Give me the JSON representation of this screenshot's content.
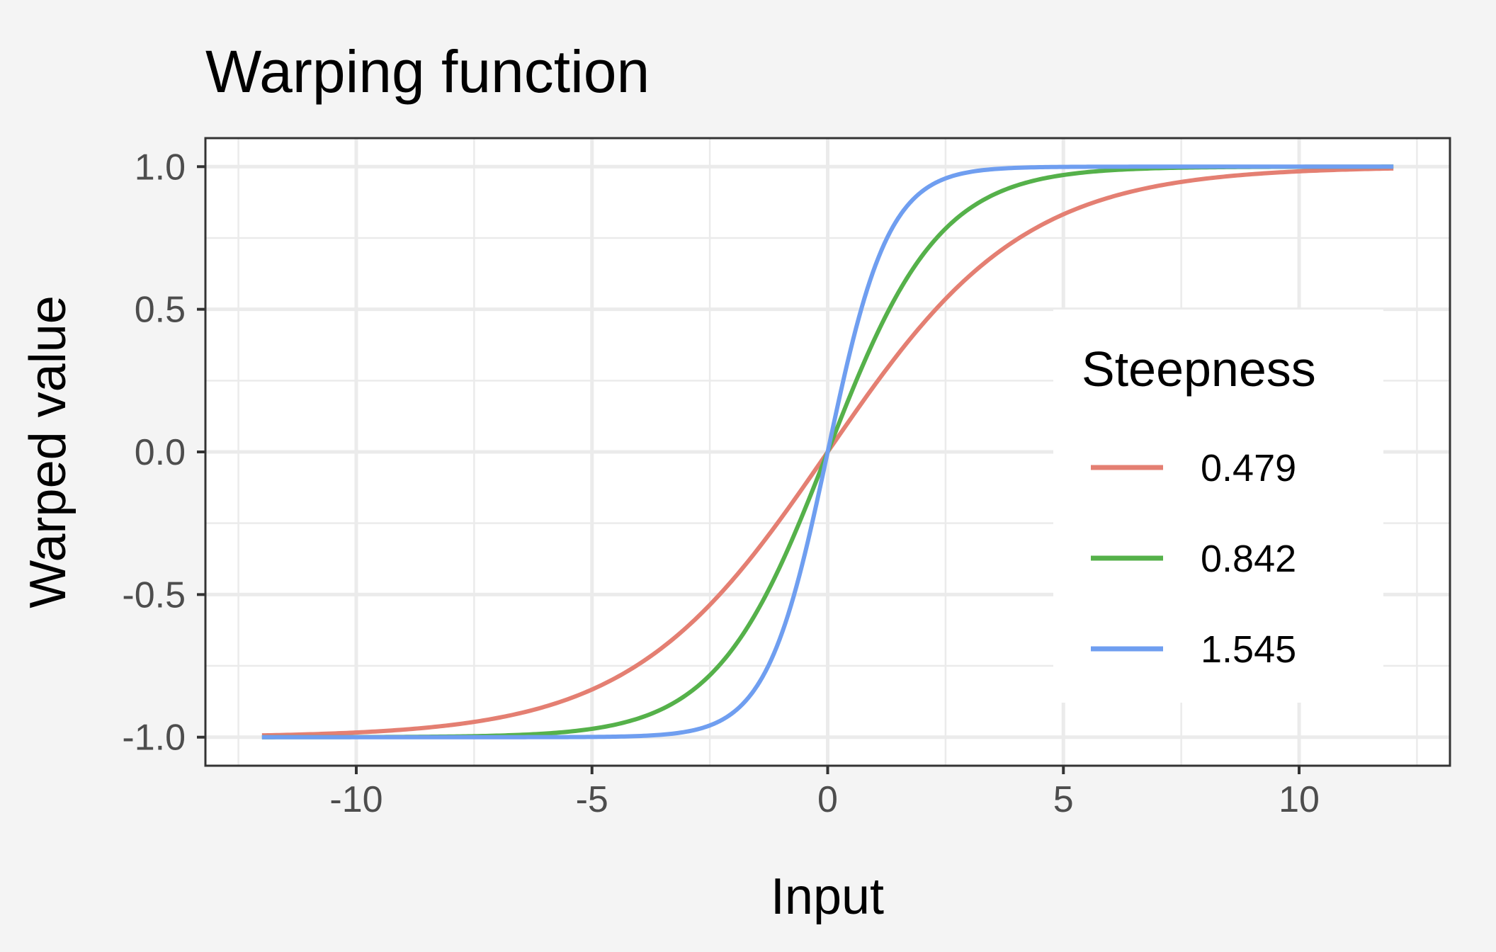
{
  "chart_data": {
    "type": "line",
    "title": "Warping function",
    "xlabel": "Input",
    "ylabel": "Warped value",
    "xlim": [
      -13.2,
      13.2
    ],
    "ylim": [
      -1.1,
      1.1
    ],
    "x_ticks": [
      -10,
      -5,
      0,
      5,
      10
    ],
    "x_tick_labels": [
      "-10",
      "-5",
      "0",
      "5",
      "10"
    ],
    "y_ticks": [
      -1.0,
      -0.5,
      0.0,
      0.5,
      1.0
    ],
    "y_tick_labels": [
      "-1.0",
      "-0.5",
      "0.0",
      "0.5",
      "1.0"
    ],
    "x_range": [
      -12,
      12
    ],
    "function": "tanh(steepness * x / 2)",
    "grid": true,
    "legend": {
      "title": "Steepness",
      "position": "right"
    },
    "series": [
      {
        "name": "0.479",
        "steepness": 0.479,
        "color": "#e47f72"
      },
      {
        "name": "0.842",
        "steepness": 0.842,
        "color": "#55b14a"
      },
      {
        "name": "1.545",
        "steepness": 1.545,
        "color": "#6f9ef0"
      }
    ]
  }
}
